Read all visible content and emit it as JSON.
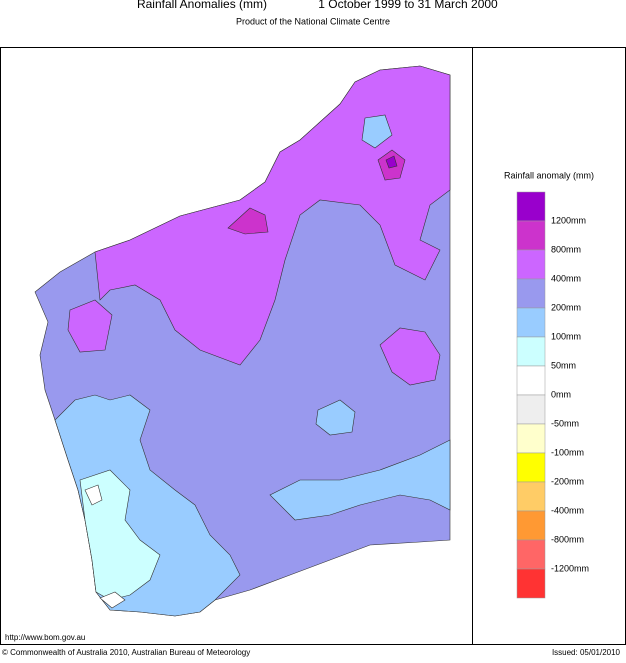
{
  "header": {
    "title": "Rainfall Anomalies (mm)",
    "period": "1 October 1999 to 31 March 2000",
    "subtitle": "Product of the National Climate Centre"
  },
  "legend": {
    "title": "Rainfall anomaly (mm)",
    "colors": [
      "#9900cc",
      "#cc33cc",
      "#cc66ff",
      "#9999ee",
      "#99ccff",
      "#ccffff",
      "#ffffff",
      "#eeeeee",
      "#ffffcc",
      "#ffff00",
      "#ffcc66",
      "#ff9933",
      "#ff6666",
      "#ff3333"
    ],
    "labels": [
      "1200mm",
      "800mm",
      "400mm",
      "200mm",
      "100mm",
      "50mm",
      "0mm",
      "-50mm",
      "-100mm",
      "-200mm",
      "-400mm",
      "-800mm",
      "-1200mm"
    ]
  },
  "footer": {
    "url": "http://www.bom.gov.au",
    "copyright": "© Commonwealth of Australia 2010, Australian Bureau of Meteorology",
    "issued": "Issued: 05/01/2010"
  }
}
